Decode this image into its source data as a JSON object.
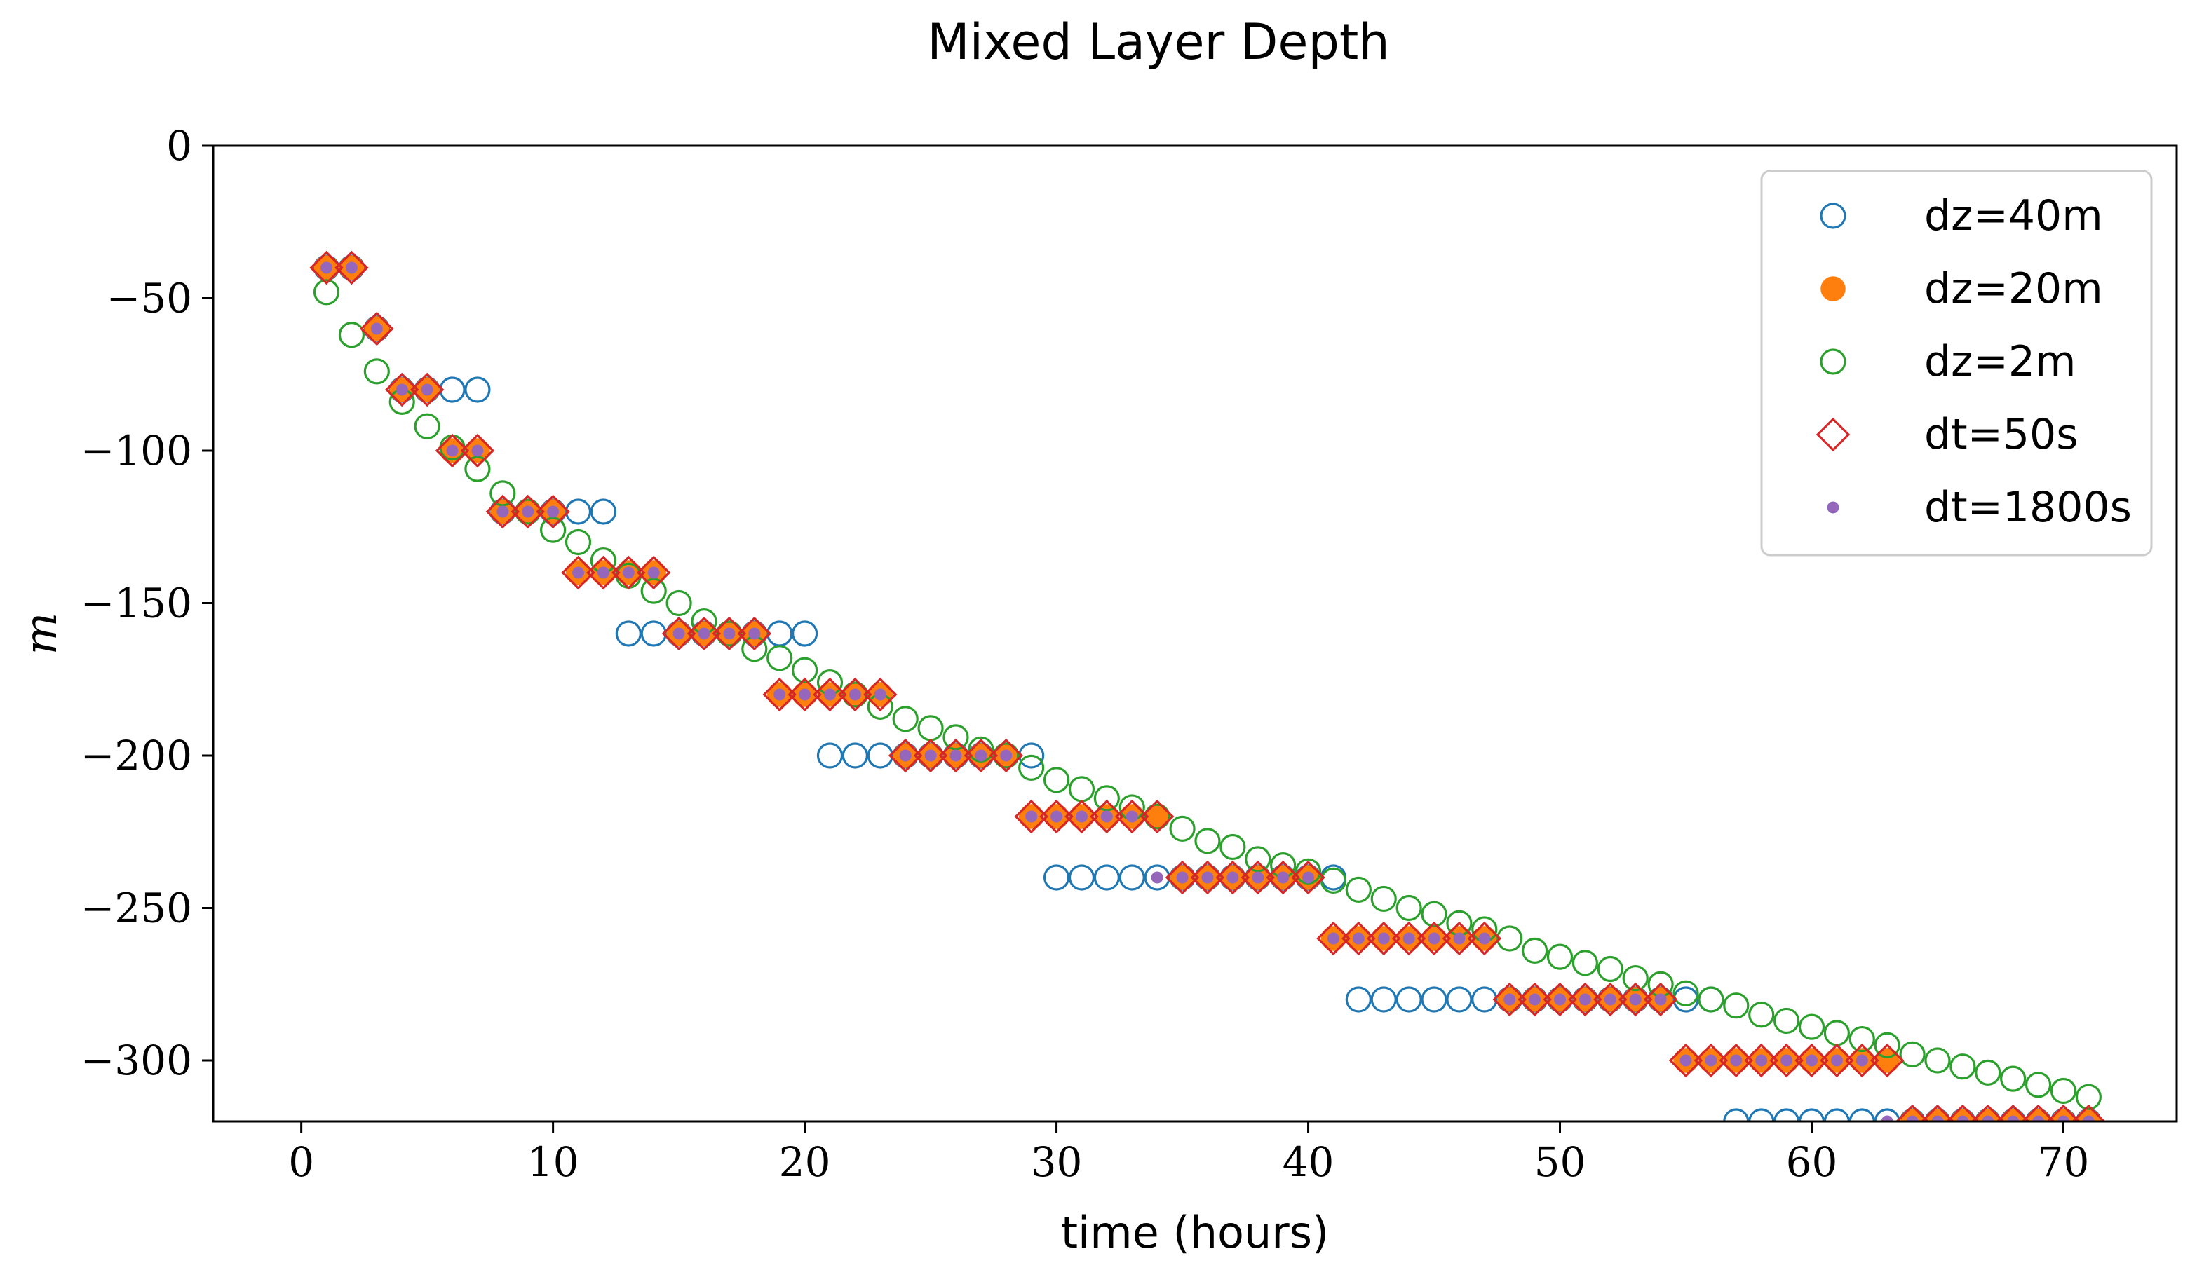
{
  "chart_data": {
    "type": "scatter",
    "title": "Mixed Layer Depth",
    "xlabel": "time (hours)",
    "ylabel": "m",
    "xlim": [
      -3.5,
      74.5
    ],
    "ylim": [
      -320,
      0
    ],
    "xticks": [
      0,
      10,
      20,
      30,
      40,
      50,
      60,
      70
    ],
    "xtick_labels": [
      "0",
      "10",
      "20",
      "30",
      "40",
      "50",
      "60",
      "70"
    ],
    "yticks": [
      0,
      -50,
      -100,
      -150,
      -200,
      -250,
      -300
    ],
    "ytick_labels": [
      "0",
      "−50",
      "−100",
      "−150",
      "−200",
      "−250",
      "−300"
    ],
    "grid": false,
    "legend_position": "top-right",
    "x": [
      1,
      2,
      3,
      4,
      5,
      6,
      7,
      8,
      9,
      10,
      11,
      12,
      13,
      14,
      15,
      16,
      17,
      18,
      19,
      20,
      21,
      22,
      23,
      24,
      25,
      26,
      27,
      28,
      29,
      30,
      31,
      32,
      33,
      34,
      35,
      36,
      37,
      38,
      39,
      40,
      41,
      42,
      43,
      44,
      45,
      46,
      47,
      48,
      49,
      50,
      51,
      52,
      53,
      54,
      55,
      56,
      57,
      58,
      59,
      60,
      61,
      62,
      63,
      64,
      65,
      66,
      67,
      68,
      69,
      70,
      71
    ],
    "series": [
      {
        "name": "dz=40m",
        "marker": "circle-open",
        "color": "#1f77b4",
        "values": [
          -40,
          -40,
          -60,
          -80,
          -80,
          -80,
          -80,
          -120,
          -120,
          -120,
          -120,
          -120,
          -160,
          -160,
          -160,
          -160,
          -160,
          -160,
          -160,
          -160,
          -200,
          -200,
          -200,
          -200,
          -200,
          -200,
          -200,
          -200,
          -200,
          -240,
          -240,
          -240,
          -240,
          -240,
          -240,
          -240,
          -240,
          -240,
          -240,
          -240,
          -240,
          -280,
          -280,
          -280,
          -280,
          -280,
          -280,
          -280,
          -280,
          -280,
          -280,
          -280,
          -280,
          -280,
          -280,
          -280,
          -320,
          -320,
          -320,
          -320,
          -320,
          -320,
          -320,
          -320,
          -320,
          -320,
          -320,
          -320,
          -320,
          -320,
          -320
        ]
      },
      {
        "name": "dz=20m",
        "marker": "circle-filled",
        "color": "#ff7f0e",
        "values": [
          -40,
          -40,
          -60,
          -80,
          -80,
          -100,
          -100,
          -120,
          -120,
          -120,
          -140,
          -140,
          -140,
          -140,
          -160,
          -160,
          -160,
          -160,
          -180,
          -180,
          -180,
          -180,
          -180,
          -200,
          -200,
          -200,
          -200,
          -200,
          -220,
          -220,
          -220,
          -220,
          -220,
          -220,
          -240,
          -240,
          -240,
          -240,
          -240,
          -240,
          -260,
          -260,
          -260,
          -260,
          -260,
          -260,
          -260,
          -280,
          -280,
          -280,
          -280,
          -280,
          -280,
          -280,
          -300,
          -300,
          -300,
          -300,
          -300,
          -300,
          -300,
          -300,
          -300,
          -320,
          -320,
          -320,
          -320,
          -320,
          -320,
          -320,
          -320
        ]
      },
      {
        "name": "dz=2m",
        "marker": "circle-open",
        "color": "#2ca02c",
        "values": [
          -48,
          -62,
          -74,
          -84,
          -92,
          -99,
          -106,
          -114,
          -120,
          -126,
          -130,
          -136,
          -141,
          -146,
          -150,
          -156,
          -160,
          -165,
          -168,
          -172,
          -176,
          -180,
          -184,
          -188,
          -191,
          -194,
          -198,
          -200,
          -204,
          -208,
          -211,
          -214,
          -217,
          -220,
          -224,
          -228,
          -230,
          -234,
          -236,
          -238,
          -241,
          -244,
          -247,
          -250,
          -252,
          -255,
          -257,
          -260,
          -264,
          -266,
          -268,
          -270,
          -273,
          -275,
          -278,
          -280,
          -282,
          -285,
          -287,
          -289,
          -291,
          -293,
          -295,
          -298,
          -300,
          -302,
          -304,
          -306,
          -308,
          -310,
          -312
        ]
      },
      {
        "name": "dt=50s",
        "marker": "diamond-open",
        "color": "#d62728",
        "values": [
          -40,
          -40,
          -60,
          -80,
          -80,
          -100,
          -100,
          -120,
          -120,
          -120,
          -140,
          -140,
          -140,
          -140,
          -160,
          -160,
          -160,
          -160,
          -180,
          -180,
          -180,
          -180,
          -180,
          -200,
          -200,
          -200,
          -200,
          -200,
          -220,
          -220,
          -220,
          -220,
          -220,
          -220,
          -240,
          -240,
          -240,
          -240,
          -240,
          -240,
          -260,
          -260,
          -260,
          -260,
          -260,
          -260,
          -260,
          -280,
          -280,
          -280,
          -280,
          -280,
          -280,
          -280,
          -300,
          -300,
          -300,
          -300,
          -300,
          -300,
          -300,
          -300,
          -300,
          -320,
          -320,
          -320,
          -320,
          -320,
          -320,
          -320,
          -320
        ]
      },
      {
        "name": "dt=1800s",
        "marker": "dot",
        "color": "#9467bd",
        "values": [
          -40,
          -40,
          -60,
          -80,
          -80,
          -100,
          -100,
          -120,
          -120,
          -120,
          -140,
          -140,
          -140,
          -140,
          -160,
          -160,
          -160,
          -160,
          -180,
          -180,
          -180,
          -180,
          -180,
          -200,
          -200,
          -200,
          -200,
          -200,
          -220,
          -220,
          -220,
          -220,
          -220,
          -240,
          -240,
          -240,
          -240,
          -240,
          -240,
          -240,
          -260,
          -260,
          -260,
          -260,
          -260,
          -260,
          -260,
          -280,
          -280,
          -280,
          -280,
          -280,
          -280,
          -280,
          -300,
          -300,
          -300,
          -300,
          -300,
          -300,
          -300,
          -300,
          -320,
          -320,
          -320,
          -320,
          -320,
          -320,
          -320,
          -320,
          -320
        ]
      }
    ]
  }
}
